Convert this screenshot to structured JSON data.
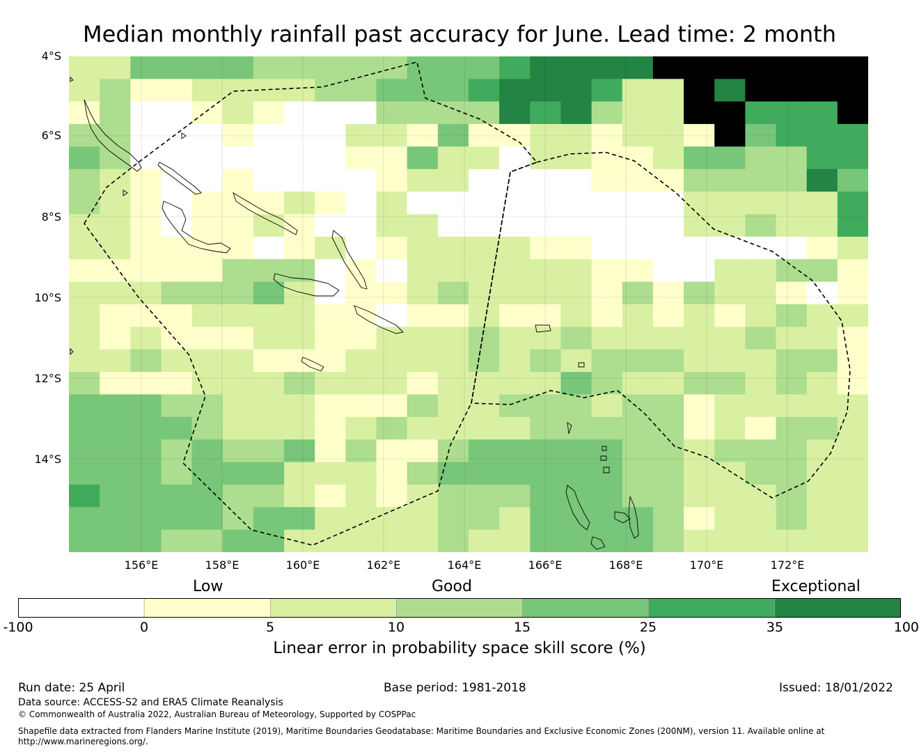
{
  "title": "Median monthly rainfall past accuracy for June. Lead time: 2 month",
  "latitude_labels": [
    "4°S",
    "6°S",
    "8°S",
    "10°S",
    "12°S",
    "14°S"
  ],
  "longitude_labels": [
    "156°E",
    "158°E",
    "160°E",
    "162°E",
    "164°E",
    "166°E",
    "168°E",
    "170°E",
    "172°E"
  ],
  "quality_labels": {
    "low": "Low",
    "good": "Good",
    "exceptional": "Exceptional"
  },
  "colorbar": {
    "ticks": [
      "-100",
      "0",
      "5",
      "10",
      "15",
      "25",
      "35",
      "100"
    ],
    "colors": [
      "#ffffff",
      "#ffffcc",
      "#d9f0a3",
      "#addd8e",
      "#78c679",
      "#41ab5d",
      "#238443"
    ],
    "label": "Linear error in probability space skill score (%)"
  },
  "footer": {
    "run_date": "Run date: 25 April",
    "base_period": "Base period: 1981-2018",
    "issued": "Issued: 18/01/2022",
    "data_source": "Data source: ACCESS-S2 and ERA5 Climate Reanalysis",
    "copyright": "© Commonwealth of Australia 2022, Australian Bureau of Meteorology, Supported by COSPPac",
    "shapefile_line1": "Shapefile data extracted from Flanders Marine Institute (2019), Maritime Boundaries Geodatabase: Maritime Boundaries and Exclusive Economic Zones (200NM), version 11. Available online at",
    "shapefile_line2": "http://www.marineregions.org/."
  },
  "skill_grid": [
    "22444433333444566667778888",
    "23112222334445666522767788",
    "13001210003333656322775558",
    "33000100022141122122174555",
    "43000000011422022112443355",
    "32100100001220000111333364",
    "32101112102000000000222225",
    "22101121002200000000223225",
    "22111101201222211000000012",
    "11111333010222222110022331",
    "22233342011232222131322101",
    "21112222110112112121212322",
    "21211122112223223222223221",
    "22322211122223232333222331",
    "31112223222122224322332321",
    "44433222111322333233122222",
    "44443222123222233333121332",
    "44434334131134444433233322",
    "44434442221344444433223322",
    "54444332121233344433222322",
    "44444344222233244443122322",
    "44433442222232244443222222"
  ]
}
